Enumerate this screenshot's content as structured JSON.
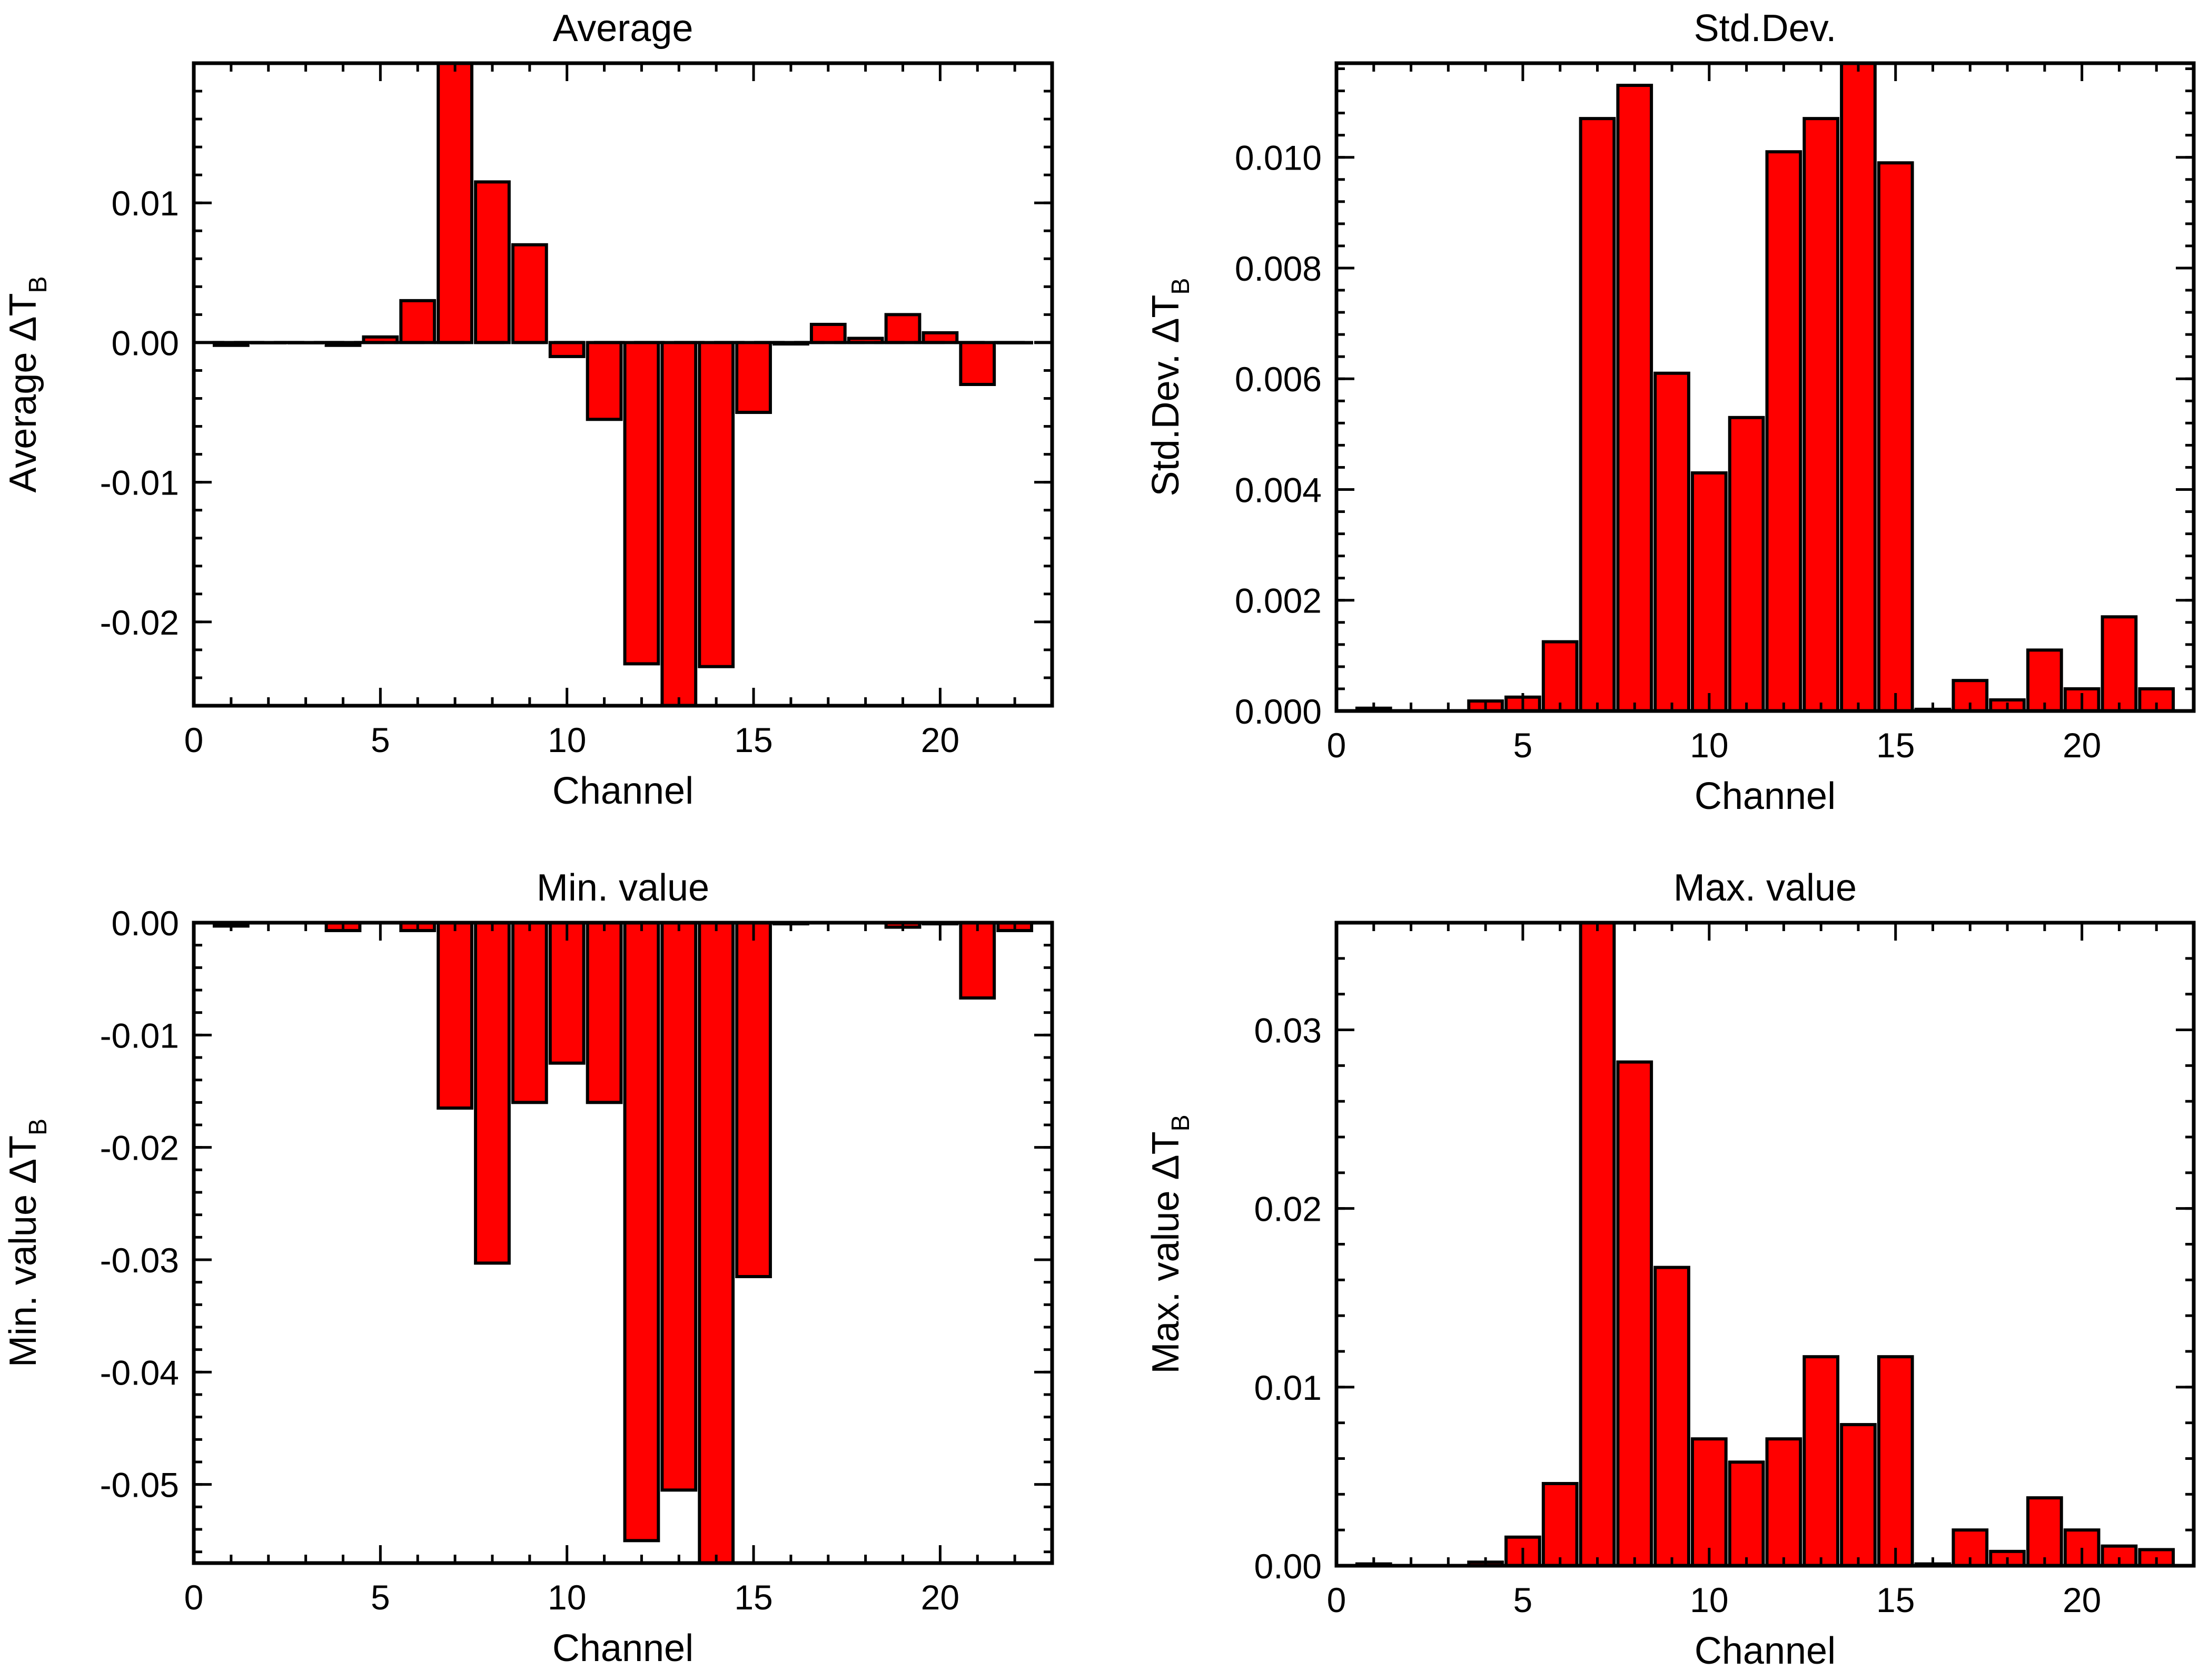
{
  "colors": {
    "bar_fill": "#ff0000",
    "bar_stroke": "#000000",
    "axis": "#000000",
    "background": "#ffffff"
  },
  "chart_data": [
    {
      "type": "bar",
      "title": "Average",
      "xlabel": "Channel",
      "ylabel": "Average ΔT",
      "ylabel_sub": "B",
      "xlim": [
        0,
        23
      ],
      "ylim": [
        -0.026,
        0.02
      ],
      "xticks": [
        "0",
        "5",
        "10",
        "15",
        "20"
      ],
      "xtick_values": [
        0,
        5,
        10,
        15,
        20
      ],
      "yticks": [
        "-0.02",
        "-0.01",
        "0.00",
        "0.01"
      ],
      "ytick_values": [
        -0.02,
        -0.01,
        0.0,
        0.01
      ],
      "ytick_minor_step": 0.002,
      "zero_line_dashed": true,
      "channels": [
        1,
        2,
        3,
        4,
        5,
        6,
        7,
        8,
        9,
        10,
        11,
        12,
        13,
        14,
        15,
        16,
        17,
        18,
        19,
        20,
        21,
        22
      ],
      "values": [
        -0.0002,
        0.0,
        0.0,
        -0.0002,
        0.0004,
        0.003,
        0.02,
        0.0115,
        0.007,
        -0.001,
        -0.0055,
        -0.023,
        -0.026,
        -0.0232,
        -0.005,
        -0.0001,
        0.0013,
        0.0003,
        0.002,
        0.0007,
        -0.003,
        0.0
      ]
    },
    {
      "type": "bar",
      "title": "Std.Dev.",
      "xlabel": "Channel",
      "ylabel": "Std.Dev. ΔT",
      "ylabel_sub": "B",
      "xlim": [
        0,
        23
      ],
      "ylim": [
        0.0,
        0.0117
      ],
      "xticks": [
        "0",
        "5",
        "10",
        "15",
        "20"
      ],
      "xtick_values": [
        0,
        5,
        10,
        15,
        20
      ],
      "yticks": [
        "0.000",
        "0.002",
        "0.004",
        "0.006",
        "0.008",
        "0.010"
      ],
      "ytick_values": [
        0.0,
        0.002,
        0.004,
        0.006,
        0.008,
        0.01
      ],
      "ytick_minor_step": 0.0004,
      "zero_line_dashed": false,
      "channels": [
        1,
        2,
        3,
        4,
        5,
        6,
        7,
        8,
        9,
        10,
        11,
        12,
        13,
        14,
        15,
        16,
        17,
        18,
        19,
        20,
        21,
        22
      ],
      "values": [
        5e-05,
        0.0,
        0.0,
        0.00018,
        0.00025,
        0.00125,
        0.0107,
        0.0113,
        0.0061,
        0.0043,
        0.0053,
        0.0101,
        0.0107,
        0.0117,
        0.0099,
        3e-05,
        0.00055,
        0.0002,
        0.0011,
        0.0004,
        0.0017,
        0.0004
      ]
    },
    {
      "type": "bar",
      "title": "Min. value",
      "xlabel": "Channel",
      "ylabel": "Min. value ΔT",
      "ylabel_sub": "B",
      "xlim": [
        0,
        23
      ],
      "ylim": [
        -0.057,
        0.0
      ],
      "xticks": [
        "0",
        "5",
        "10",
        "15",
        "20"
      ],
      "xtick_values": [
        0,
        5,
        10,
        15,
        20
      ],
      "yticks": [
        "-0.05",
        "-0.04",
        "-0.03",
        "-0.02",
        "-0.01",
        "0.00"
      ],
      "ytick_values": [
        -0.05,
        -0.04,
        -0.03,
        -0.02,
        -0.01,
        0.0
      ],
      "ytick_minor_step": 0.002,
      "zero_line_dashed": false,
      "channels": [
        1,
        2,
        3,
        4,
        5,
        6,
        7,
        8,
        9,
        10,
        11,
        12,
        13,
        14,
        15,
        16,
        17,
        18,
        19,
        20,
        21,
        22
      ],
      "values": [
        -0.0003,
        0.0,
        0.0,
        -0.0007,
        0.0,
        -0.0007,
        -0.0165,
        -0.0303,
        -0.016,
        -0.0125,
        -0.016,
        -0.055,
        -0.0505,
        -0.057,
        -0.0315,
        -0.0001,
        0.0,
        0.0,
        -0.0004,
        -0.0001,
        -0.0067,
        -0.0007
      ]
    },
    {
      "type": "bar",
      "title": "Max. value",
      "xlabel": "Channel",
      "ylabel": "Max. value ΔT",
      "ylabel_sub": "B",
      "xlim": [
        0,
        23
      ],
      "ylim": [
        0.0,
        0.036
      ],
      "xticks": [
        "0",
        "5",
        "10",
        "15",
        "20"
      ],
      "xtick_values": [
        0,
        5,
        10,
        15,
        20
      ],
      "yticks": [
        "0.00",
        "0.01",
        "0.02",
        "0.03"
      ],
      "ytick_values": [
        0.0,
        0.01,
        0.02,
        0.03
      ],
      "ytick_minor_step": 0.002,
      "zero_line_dashed": false,
      "channels": [
        1,
        2,
        3,
        4,
        5,
        6,
        7,
        8,
        9,
        10,
        11,
        12,
        13,
        14,
        15,
        16,
        17,
        18,
        19,
        20,
        21,
        22
      ],
      "values": [
        0.0001,
        0.0,
        0.0,
        0.0002,
        0.0016,
        0.0046,
        0.036,
        0.0282,
        0.0167,
        0.0071,
        0.0058,
        0.0071,
        0.0117,
        0.0079,
        0.0117,
        0.0001,
        0.002,
        0.0008,
        0.0038,
        0.002,
        0.0011,
        0.0009
      ]
    }
  ]
}
